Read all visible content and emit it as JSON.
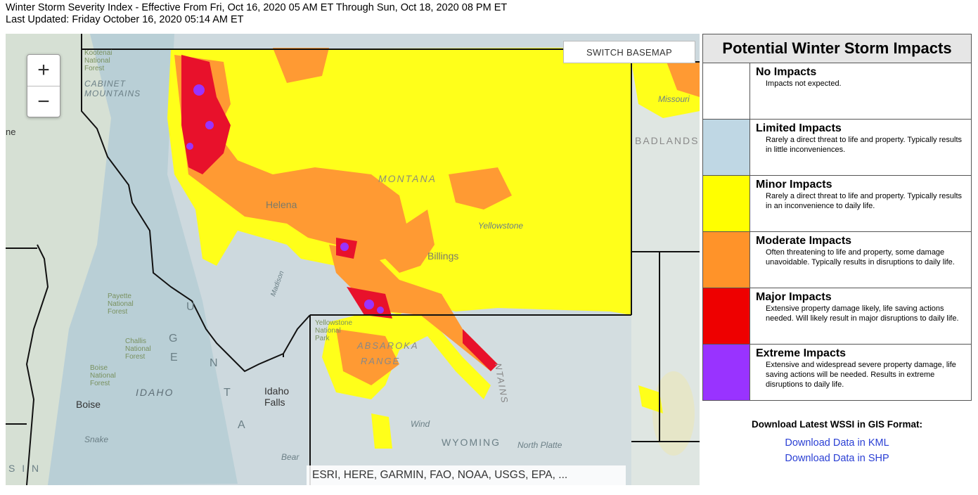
{
  "header": {
    "title": "Winter Storm Severity Index - Effective From Fri, Oct 16, 2020 05 AM ET Through Sun, Oct 18, 2020 08 PM ET",
    "updated": "Last Updated: Friday October 16, 2020 05:14 AM ET"
  },
  "map": {
    "zoom_in": "+",
    "zoom_out": "−",
    "switch_basemap": "SWITCH BASEMAP",
    "attribution": "ESRI, HERE, GARMIN, FAO, NOAA, USGS, EPA, ...",
    "labels": {
      "montana": "MONTANA",
      "helena": "Helena",
      "billings": "Billings",
      "idaho": "IDAHO",
      "idaho_falls": "Idaho Falls",
      "boise": "Boise",
      "wyoming": "WYOMING",
      "badlands": "BADLANDS",
      "yellowstone": "Yellowstone",
      "cabinet": "CABINET MOUNTAINS",
      "snake": "Snake",
      "north_platte": "North Platte",
      "wind": "Wind",
      "ne": "ne",
      "sin": "S I N",
      "absaroka": "ABSAROKA",
      "range": "RANGE",
      "bear": "Bear",
      "missouri": "Missouri",
      "kootenai": "Kootenai National Forest",
      "payette": "Payette National Forest",
      "challis": "Challis National Forest",
      "boise_nf": "Boise National Forest",
      "yellowstone_np": "Yellowstone National Park",
      "madison": "Madison",
      "ntains": "NTAINS",
      "range_letters": [
        "G",
        "E",
        "U",
        "N",
        "T",
        "A"
      ]
    }
  },
  "legend": {
    "title": "Potential Winter Storm Impacts",
    "rows": [
      {
        "title": "No Impacts",
        "desc": "Impacts not expected.",
        "color": "#ffffff"
      },
      {
        "title": "Limited Impacts",
        "desc": "Rarely a direct threat to life and property. Typically results in little inconveniences.",
        "color": "#bfd7e4"
      },
      {
        "title": "Minor Impacts",
        "desc": "Rarely a direct threat to life and property. Typically results in an inconvenience to daily life.",
        "color": "#ffff00"
      },
      {
        "title": "Moderate Impacts",
        "desc": "Often threatening to life and property, some damage unavoidable. Typically results in disruptions to daily life.",
        "color": "#ff9329"
      },
      {
        "title": "Major Impacts",
        "desc": "Extensive property damage likely, life saving actions needed. Will likely result in major disruptions to daily life.",
        "color": "#ee0000"
      },
      {
        "title": "Extreme Impacts",
        "desc": "Extensive and widespread severe property damage, life saving actions will be needed. Results in extreme disruptions to daily life.",
        "color": "#9933ff"
      }
    ]
  },
  "download": {
    "title": "Download Latest WSSI in GIS Format:",
    "kml": "Download Data in KML",
    "shp": "Download Data in SHP"
  }
}
